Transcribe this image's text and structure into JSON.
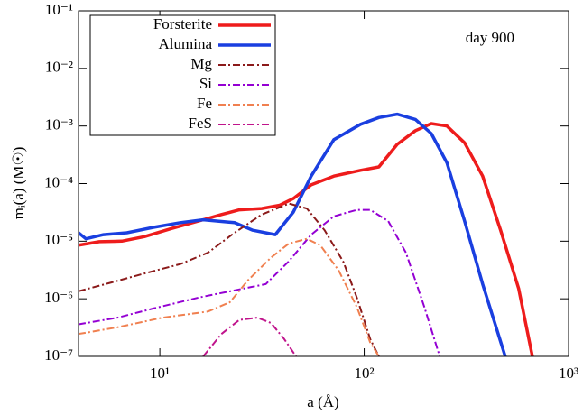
{
  "chart_data": {
    "type": "line",
    "x_label": "a (Å)",
    "y_label": "mᵢ(a) (M☉)",
    "annotation": "day 900",
    "xscale": "log",
    "yscale": "log",
    "legend": "top-left",
    "xlim": [
      4,
      1000
    ],
    "ylim": [
      1e-07,
      0.1
    ],
    "xticks": [
      {
        "value": 10,
        "label": "10¹"
      },
      {
        "value": 100,
        "label": "10²"
      },
      {
        "value": 1000,
        "label": "10³"
      }
    ],
    "yticks": [
      {
        "value": 1e-07,
        "label": "10⁻⁷"
      },
      {
        "value": 1e-06,
        "label": "10⁻⁶"
      },
      {
        "value": 1e-05,
        "label": "10⁻⁵"
      },
      {
        "value": 0.0001,
        "label": "10⁻⁴"
      },
      {
        "value": 0.001,
        "label": "10⁻³"
      },
      {
        "value": 0.01,
        "label": "10⁻²"
      },
      {
        "value": 0.1,
        "label": "10⁻¹"
      }
    ],
    "series": [
      {
        "name": "Forsterite",
        "color": "#ee1c1c",
        "line_style": "solid",
        "x": [
          4,
          5.06,
          6.52,
          8.4,
          11.4,
          15.5,
          20,
          24.5,
          31.5,
          38.6,
          45,
          55,
          71,
          96,
          118,
          145,
          178,
          213,
          254,
          310,
          380,
          465,
          570,
          665
        ],
        "values": [
          8.5e-06,
          9.8e-06,
          1e-05,
          1.2e-05,
          1.66e-05,
          2.24e-05,
          2.9e-05,
          3.5e-05,
          3.7e-05,
          4.2e-05,
          5.5e-05,
          9.5e-05,
          0.000135,
          0.00017,
          0.000195,
          0.00048,
          0.00083,
          0.0011,
          0.001,
          0.00051,
          0.000135,
          1.55e-05,
          1.5e-06,
          1e-07
        ]
      },
      {
        "name": "Alumina",
        "color": "#1a3fe0",
        "line_style": "solid",
        "x": [
          4,
          4.35,
          5.3,
          6.9,
          9.3,
          12.6,
          16.3,
          23.2,
          28.5,
          36.7,
          45,
          55,
          71,
          96,
          118,
          145,
          178,
          213,
          254,
          310,
          380,
          490
        ],
        "values": [
          1.4e-05,
          1.1e-05,
          1.3e-05,
          1.4e-05,
          1.74e-05,
          2.1e-05,
          2.35e-05,
          2.1e-05,
          1.55e-05,
          1.3e-05,
          3.2e-05,
          0.000135,
          0.00058,
          0.00107,
          0.0014,
          0.0016,
          0.0013,
          0.00074,
          0.00023,
          2.24e-05,
          1.8e-06,
          1e-07
        ]
      },
      {
        "name": "Mg",
        "color": "#8b1a1a",
        "line_style": "dash-dot",
        "x": [
          4,
          5.6,
          8.4,
          12.6,
          17.2,
          23.2,
          31.5,
          42.8,
          52.4,
          64,
          79,
          92,
          107,
          118
        ],
        "values": [
          1.35e-06,
          1.86e-06,
          2.75e-06,
          4e-06,
          6.3e-06,
          1.4e-05,
          2.9e-05,
          4.5e-05,
          3.7e-05,
          1.55e-05,
          4.4e-06,
          1.05e-06,
          2e-07,
          1e-07
        ]
      },
      {
        "name": "Si",
        "color": "#9400d3",
        "line_style": "dash-dot",
        "x": [
          4,
          6.2,
          9.3,
          15.5,
          23.2,
          33,
          42.8,
          55,
          71,
          92,
          107,
          131,
          160,
          197,
          234
        ],
        "values": [
          3.6e-07,
          4.7e-07,
          6.8e-07,
          1.05e-06,
          1.4e-06,
          1.8e-06,
          4.5e-06,
          1.3e-05,
          2.7e-05,
          3.5e-05,
          3.5e-05,
          2.24e-05,
          6.3e-06,
          7.2e-07,
          1e-07
        ]
      },
      {
        "name": "Fe",
        "color": "#f08050",
        "line_style": "dash-dot",
        "x": [
          4,
          6.2,
          10.3,
          17.2,
          22,
          27,
          35,
          42.8,
          52.4,
          61,
          75,
          92,
          107,
          118
        ],
        "values": [
          2.45e-07,
          3.2e-07,
          4.7e-07,
          6e-07,
          8.7e-07,
          2.1e-06,
          5.2e-06,
          9.1e-06,
          1.1e-05,
          8.5e-06,
          3.1e-06,
          7.2e-07,
          1.74e-07,
          1e-07
        ]
      },
      {
        "name": "FeS",
        "color": "#c0148c",
        "line_style": "dash-dot",
        "x": [
          16.3,
          20,
          24.5,
          30,
          35,
          40.6,
          46.4
        ],
        "values": [
          1e-07,
          2.45e-07,
          4.3e-07,
          4.7e-07,
          3.8e-07,
          2e-07,
          1e-07
        ]
      }
    ]
  }
}
